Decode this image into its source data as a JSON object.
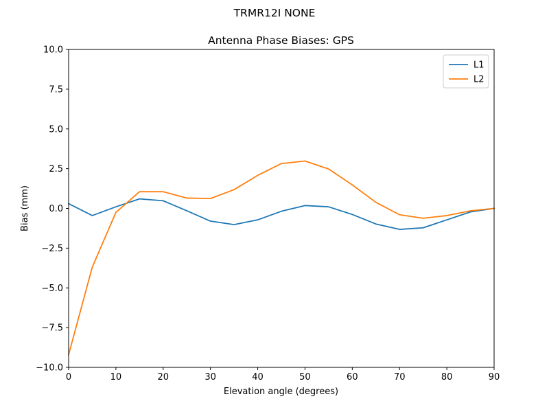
{
  "suptitle": "TRMR12I          NONE",
  "chart_data": {
    "type": "line",
    "title": "Antenna Phase Biases: GPS",
    "xlabel": "Elevation angle (degrees)",
    "ylabel": "Bias (mm)",
    "xlim": [
      0,
      90
    ],
    "ylim": [
      -10,
      10
    ],
    "xticks": [
      0,
      10,
      20,
      30,
      40,
      50,
      60,
      70,
      80,
      90
    ],
    "yticks": [
      -10.0,
      -7.5,
      -5.0,
      -2.5,
      0.0,
      2.5,
      5.0,
      7.5,
      10.0
    ],
    "xtick_labels": [
      "0",
      "10",
      "20",
      "30",
      "40",
      "50",
      "60",
      "70",
      "80",
      "90"
    ],
    "ytick_labels": [
      "−10.0",
      "−7.5",
      "−5.0",
      "−2.5",
      "0.0",
      "2.5",
      "5.0",
      "7.5",
      "10.0"
    ],
    "grid": false,
    "legend_position": "top-right",
    "x": [
      0,
      5,
      10,
      15,
      20,
      25,
      30,
      35,
      40,
      45,
      50,
      55,
      60,
      65,
      70,
      75,
      80,
      85,
      90
    ],
    "series": [
      {
        "name": "L1",
        "color": "#1f77b4",
        "values": [
          0.3,
          -0.45,
          0.1,
          0.6,
          0.48,
          -0.15,
          -0.8,
          -1.02,
          -0.72,
          -0.18,
          0.18,
          0.1,
          -0.38,
          -0.98,
          -1.32,
          -1.22,
          -0.72,
          -0.22,
          0.0
        ]
      },
      {
        "name": "L2",
        "color": "#ff7f0e",
        "values": [
          -9.2,
          -3.7,
          -0.25,
          1.05,
          1.05,
          0.65,
          0.62,
          1.18,
          2.08,
          2.82,
          2.98,
          2.48,
          1.48,
          0.38,
          -0.4,
          -0.62,
          -0.45,
          -0.15,
          0.0
        ]
      }
    ]
  }
}
